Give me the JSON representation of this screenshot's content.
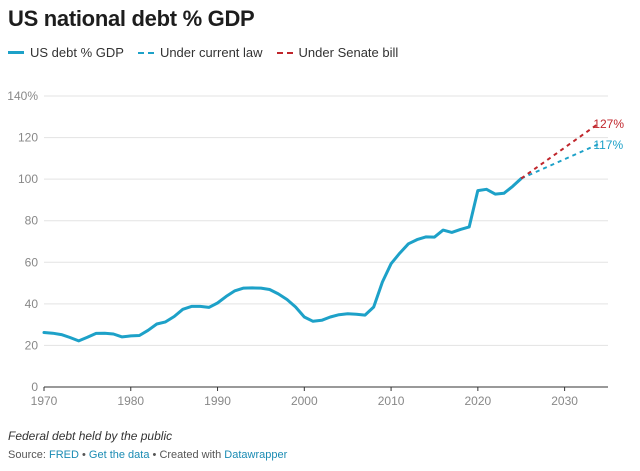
{
  "chart_data": {
    "type": "line",
    "title": "US national debt % GDP",
    "legend": {
      "position": "top-left"
    },
    "ylim": [
      0,
      140
    ],
    "xlim": [
      1970,
      2035
    ],
    "y_ticks": [
      {
        "value": 0,
        "label": "0"
      },
      {
        "value": 20,
        "label": "20"
      },
      {
        "value": 40,
        "label": "40"
      },
      {
        "value": 60,
        "label": "60"
      },
      {
        "value": 80,
        "label": "80"
      },
      {
        "value": 100,
        "label": "100"
      },
      {
        "value": 120,
        "label": "120"
      },
      {
        "value": 140,
        "label": "140%"
      }
    ],
    "x_ticks": [
      {
        "value": 1970,
        "label": "1970"
      },
      {
        "value": 1980,
        "label": "1980"
      },
      {
        "value": 1990,
        "label": "1990"
      },
      {
        "value": 2000,
        "label": "2000"
      },
      {
        "value": 2010,
        "label": "2010"
      },
      {
        "value": 2020,
        "label": "2020"
      },
      {
        "value": 2030,
        "label": "2030"
      }
    ],
    "series": [
      {
        "name": "US debt % GDP",
        "color": "#1da1c8",
        "style": "solid",
        "x": [
          1970,
          1971,
          1972,
          1973,
          1974,
          1975,
          1976,
          1977,
          1978,
          1979,
          1980,
          1981,
          1982,
          1983,
          1984,
          1985,
          1986,
          1987,
          1988,
          1989,
          1990,
          1991,
          1992,
          1993,
          1994,
          1995,
          1996,
          1997,
          1998,
          1999,
          2000,
          2001,
          2002,
          2003,
          2004,
          2005,
          2006,
          2007,
          2008,
          2009,
          2010,
          2011,
          2012,
          2013,
          2014,
          2015,
          2016,
          2017,
          2018,
          2019,
          2020,
          2021,
          2022,
          2023,
          2024,
          2025
        ],
        "y": [
          26.2,
          25.9,
          25.2,
          23.8,
          22.2,
          23.9,
          25.8,
          25.9,
          25.5,
          24.1,
          24.6,
          24.8,
          27.3,
          30.3,
          31.3,
          33.9,
          37.4,
          38.8,
          38.8,
          38.3,
          40.4,
          43.6,
          46.3,
          47.6,
          47.7,
          47.6,
          46.9,
          44.8,
          42.1,
          38.5,
          33.7,
          31.6,
          32.1,
          33.7,
          34.8,
          35.2,
          35.0,
          34.6,
          38.5,
          50.5,
          59.3,
          64.4,
          68.9,
          70.9,
          72.2,
          72.1,
          75.5,
          74.4,
          75.8,
          77.0,
          94.5,
          95.1,
          92.8,
          93.2,
          96.5,
          100.3
        ]
      },
      {
        "name": "Under current law",
        "color": "#1da1c8",
        "style": "dashed",
        "x": [
          2025,
          2034
        ],
        "y": [
          100.3,
          117
        ],
        "end_label": "117%"
      },
      {
        "name": "Under Senate bill",
        "color": "#c0262c",
        "style": "dashed",
        "x": [
          2025,
          2034
        ],
        "y": [
          100.3,
          127
        ],
        "end_label": "127%"
      }
    ]
  },
  "footer": {
    "note": "Federal debt held by the public",
    "source_label": "Source:",
    "source_link": "FRED",
    "separator": "•",
    "get_data": "Get the data",
    "created_with": "Created with",
    "tool": "Datawrapper"
  }
}
